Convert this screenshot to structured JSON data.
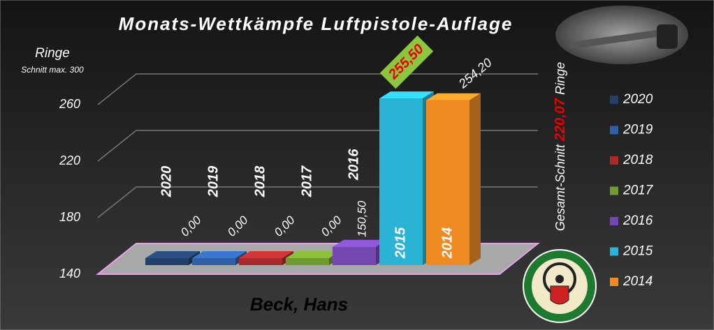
{
  "chart_data": {
    "type": "bar3d",
    "title": "Monats-Wettkämpfe Luftpistole-Auflage",
    "y_label": "Ringe",
    "y_sublabel": "Schnitt max. 300",
    "x_label": "Beck, Hans",
    "categories": [
      "2020",
      "2019",
      "2018",
      "2017",
      "2016",
      "2015",
      "2014"
    ],
    "values": [
      0,
      0,
      0,
      0,
      150.5,
      255.5,
      254.2
    ],
    "value_labels": [
      "0,00",
      "0,00",
      "0,00",
      "0,00",
      "150,50",
      "255,50",
      "254,20"
    ],
    "colors": [
      "#23406b",
      "#2f5fa6",
      "#a82a2a",
      "#6f9a2e",
      "#7448b0",
      "#2bb3d6",
      "#f08a22"
    ],
    "ylim": [
      140,
      280
    ],
    "yticks": [
      140,
      180,
      220,
      260
    ],
    "grid": true,
    "legend": "right",
    "average_prefix": "Gesamt-Schnitt",
    "average": {
      "value": 220.07,
      "label": "220,07"
    },
    "average_suffix": "Ringe"
  }
}
